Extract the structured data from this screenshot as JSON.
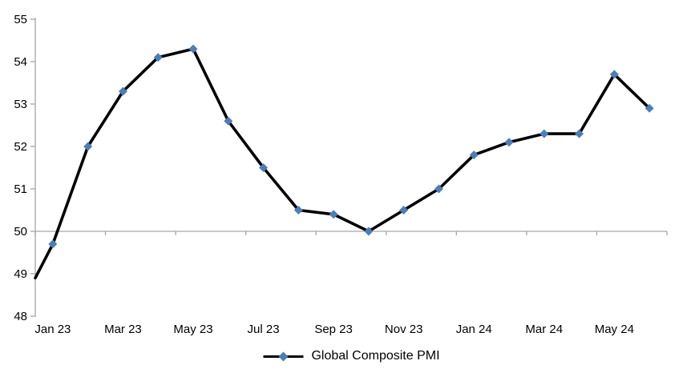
{
  "chart_data": {
    "type": "line",
    "title": "",
    "xlabel": "",
    "ylabel": "",
    "series": [
      {
        "name": "Global Composite PMI",
        "categories": [
          "Jan 23",
          "Feb 23",
          "Mar 23",
          "Apr 23",
          "May 23",
          "Jun 23",
          "Jul 23",
          "Aug 23",
          "Sep 23",
          "Oct 23",
          "Nov 23",
          "Dec 23",
          "Jan 24",
          "Feb 24",
          "Mar 24",
          "Apr 24",
          "May 24",
          "Jun 24"
        ],
        "values": [
          49.7,
          52.0,
          53.3,
          54.1,
          54.3,
          52.6,
          51.5,
          50.5,
          50.4,
          50.0,
          50.5,
          51.0,
          51.8,
          52.1,
          52.3,
          52.3,
          53.7,
          52.9
        ],
        "line_color": "#000000",
        "marker": "diamond",
        "marker_color": "#4A7EBB"
      }
    ],
    "line_enters_left_edge_at": 48.9,
    "x_tick_labels": [
      "Jan 23",
      "Mar 23",
      "May 23",
      "Jul 23",
      "Sep 23",
      "Nov 23",
      "Jan 24",
      "Mar 24",
      "May 24"
    ],
    "y_ticks": [
      48,
      49,
      50,
      51,
      52,
      53,
      54,
      55
    ],
    "ylim": [
      48,
      55
    ],
    "x_axis_crosses_at": 50,
    "grid": "off",
    "axis_color": "#A6A6A6",
    "legend": {
      "label": "Global Composite PMI",
      "position": "bottom-center"
    }
  }
}
